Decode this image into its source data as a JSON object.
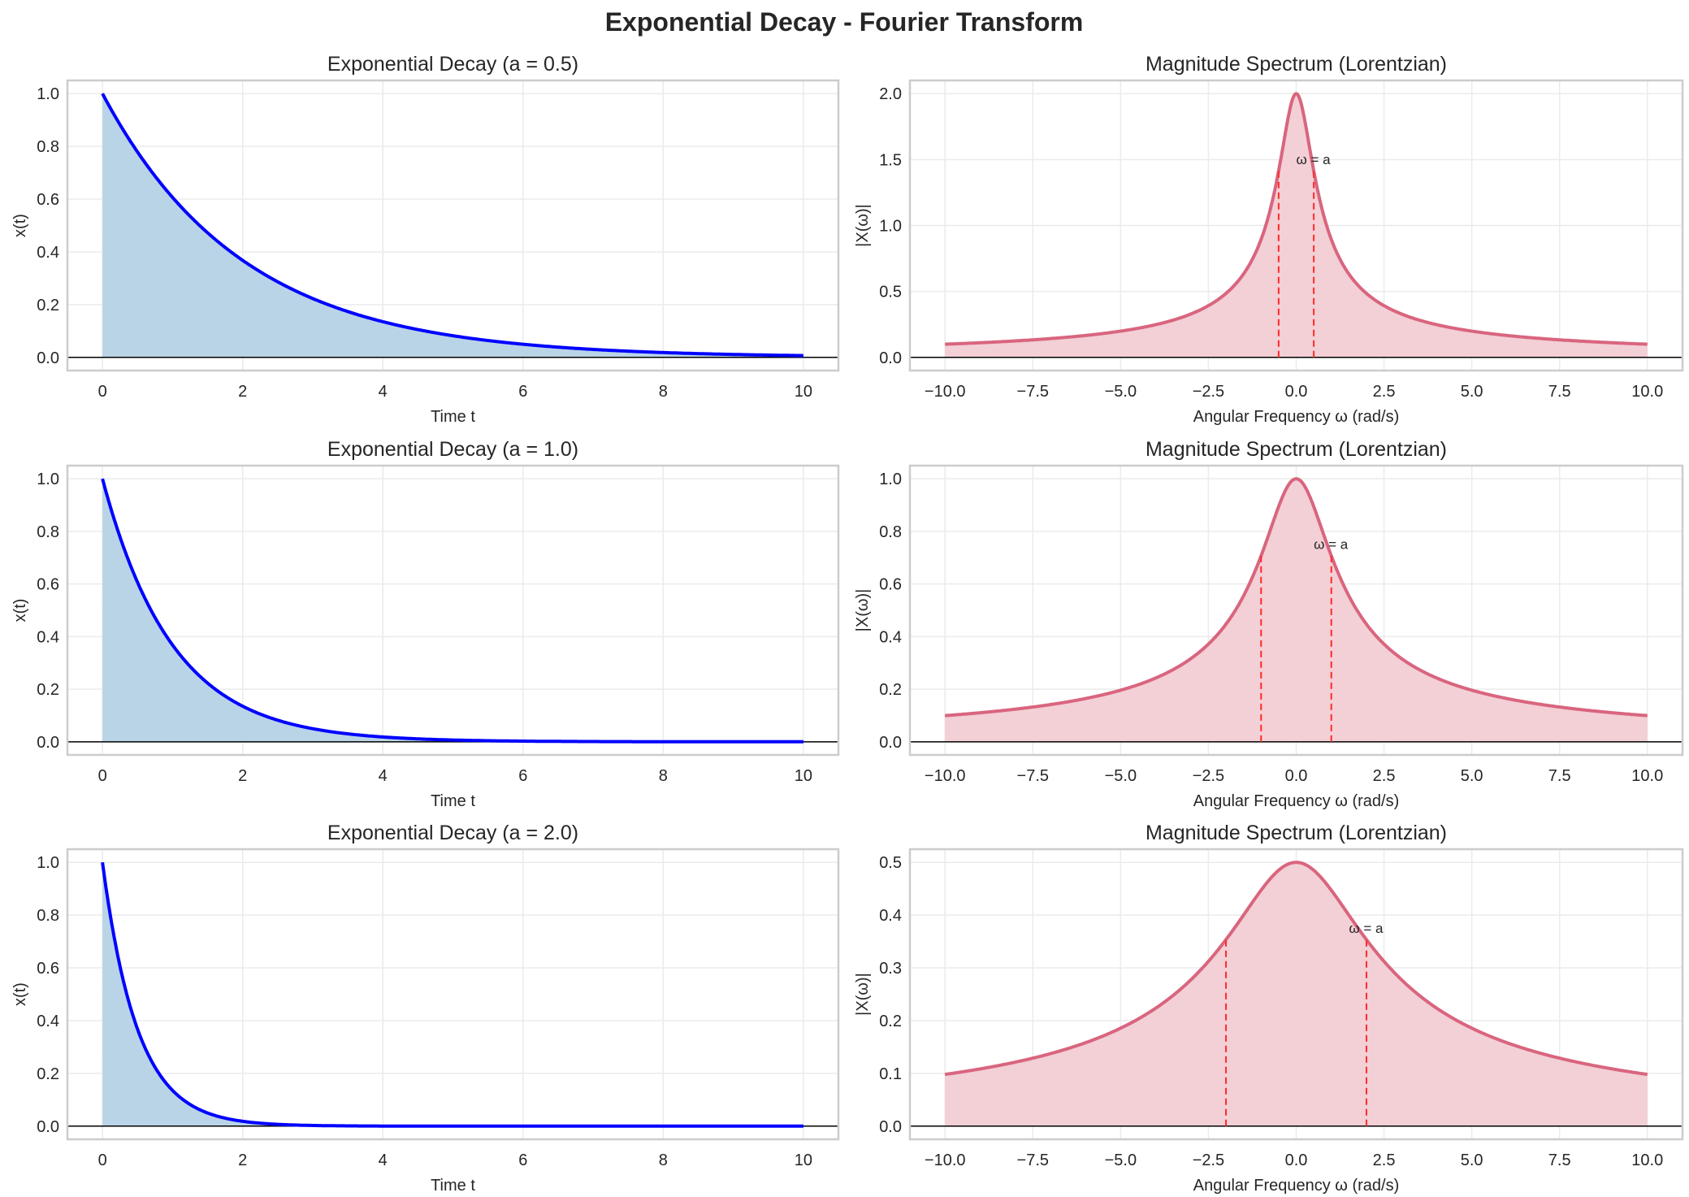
{
  "suptitle": "Exponential Decay - Fourier Transform",
  "colors": {
    "time_line": "#0000ff",
    "time_fill": "#b9d4e7",
    "spec_line": "#d9657e",
    "spec_fill": "#f3cfd6",
    "marker_line": "#ff2a2a",
    "grid": "#ebebeb",
    "frame": "#cccccc"
  },
  "chart_data": [
    {
      "type": "area",
      "title": "Exponential Decay (a = 0.5)",
      "xlabel": "Time t",
      "ylabel": "x(t)",
      "a": 0.5,
      "xlim": [
        -0.5,
        10.5
      ],
      "ylim": [
        -0.05,
        1.05
      ],
      "xticks": [
        0,
        2,
        4,
        6,
        8,
        10
      ],
      "xtick_labels": [
        "0",
        "2",
        "4",
        "6",
        "8",
        "10"
      ],
      "yticks": [
        0,
        0.2,
        0.4,
        0.6,
        0.8,
        1.0
      ],
      "ytick_labels": [
        "0.0",
        "0.2",
        "0.4",
        "0.6",
        "0.8",
        "1.0"
      ],
      "grid": true,
      "x": [
        0,
        1,
        2,
        3,
        4,
        5,
        6,
        7,
        8,
        9,
        10
      ],
      "y": [
        1,
        0.607,
        0.368,
        0.223,
        0.135,
        0.082,
        0.05,
        0.03,
        0.018,
        0.011,
        0.007
      ]
    },
    {
      "type": "area",
      "title": "Magnitude Spectrum (Lorentzian)",
      "xlabel": "Angular Frequency ω (rad/s)",
      "ylabel": "|X(ω)|",
      "a": 0.5,
      "xlim": [
        -11,
        11
      ],
      "ylim": [
        -0.1,
        2.1
      ],
      "xticks": [
        -10,
        -7.5,
        -5,
        -2.5,
        0,
        2.5,
        5,
        7.5,
        10
      ],
      "xtick_labels": [
        "−10.0",
        "−7.5",
        "−5.0",
        "−2.5",
        "0.0",
        "2.5",
        "5.0",
        "7.5",
        "10.0"
      ],
      "yticks": [
        0,
        0.5,
        1.0,
        1.5,
        2.0
      ],
      "ytick_labels": [
        "0.0",
        "0.5",
        "1.0",
        "1.5",
        "2.0"
      ],
      "grid": true,
      "x": [
        -10,
        -7.5,
        -5,
        -2.5,
        0,
        2.5,
        5,
        7.5,
        10
      ],
      "y": [
        0.0999,
        0.133,
        0.199,
        0.392,
        2.0,
        0.392,
        0.199,
        0.133,
        0.0999
      ],
      "annotation": "ω = a",
      "markers": [
        -0.5,
        0.5
      ]
    },
    {
      "type": "area",
      "title": "Exponential Decay (a = 1.0)",
      "xlabel": "Time t",
      "ylabel": "x(t)",
      "a": 1.0,
      "xlim": [
        -0.5,
        10.5
      ],
      "ylim": [
        -0.05,
        1.05
      ],
      "xticks": [
        0,
        2,
        4,
        6,
        8,
        10
      ],
      "xtick_labels": [
        "0",
        "2",
        "4",
        "6",
        "8",
        "10"
      ],
      "yticks": [
        0,
        0.2,
        0.4,
        0.6,
        0.8,
        1.0
      ],
      "ytick_labels": [
        "0.0",
        "0.2",
        "0.4",
        "0.6",
        "0.8",
        "1.0"
      ],
      "grid": true,
      "x": [
        0,
        1,
        2,
        3,
        4,
        5,
        6,
        7,
        8,
        9,
        10
      ],
      "y": [
        1,
        0.368,
        0.135,
        0.05,
        0.018,
        0.007,
        0.002,
        0.001,
        0,
        0,
        0
      ]
    },
    {
      "type": "area",
      "title": "Magnitude Spectrum (Lorentzian)",
      "xlabel": "Angular Frequency ω (rad/s)",
      "ylabel": "|X(ω)|",
      "a": 1.0,
      "xlim": [
        -11,
        11
      ],
      "ylim": [
        -0.05,
        1.05
      ],
      "xticks": [
        -10,
        -7.5,
        -5,
        -2.5,
        0,
        2.5,
        5,
        7.5,
        10
      ],
      "xtick_labels": [
        "−10.0",
        "−7.5",
        "−5.0",
        "−2.5",
        "0.0",
        "2.5",
        "5.0",
        "7.5",
        "10.0"
      ],
      "yticks": [
        0,
        0.2,
        0.4,
        0.6,
        0.8,
        1.0
      ],
      "ytick_labels": [
        "0.0",
        "0.2",
        "0.4",
        "0.6",
        "0.8",
        "1.0"
      ],
      "grid": true,
      "x": [
        -10,
        -7.5,
        -5,
        -2.5,
        0,
        2.5,
        5,
        7.5,
        10
      ],
      "y": [
        0.0995,
        0.132,
        0.196,
        0.371,
        1.0,
        0.371,
        0.196,
        0.132,
        0.0995
      ],
      "annotation": "ω = a",
      "markers": [
        -1,
        1
      ]
    },
    {
      "type": "area",
      "title": "Exponential Decay (a = 2.0)",
      "xlabel": "Time t",
      "ylabel": "x(t)",
      "a": 2.0,
      "xlim": [
        -0.5,
        10.5
      ],
      "ylim": [
        -0.05,
        1.05
      ],
      "xticks": [
        0,
        2,
        4,
        6,
        8,
        10
      ],
      "xtick_labels": [
        "0",
        "2",
        "4",
        "6",
        "8",
        "10"
      ],
      "yticks": [
        0,
        0.2,
        0.4,
        0.6,
        0.8,
        1.0
      ],
      "ytick_labels": [
        "0.0",
        "0.2",
        "0.4",
        "0.6",
        "0.8",
        "1.0"
      ],
      "grid": true,
      "x": [
        0,
        1,
        2,
        3,
        4,
        5,
        6,
        7,
        8,
        9,
        10
      ],
      "y": [
        1,
        0.135,
        0.018,
        0.002,
        0,
        0,
        0,
        0,
        0,
        0,
        0
      ]
    },
    {
      "type": "area",
      "title": "Magnitude Spectrum (Lorentzian)",
      "xlabel": "Angular Frequency ω (rad/s)",
      "ylabel": "|X(ω)|",
      "a": 2.0,
      "xlim": [
        -11,
        11
      ],
      "ylim": [
        -0.025,
        0.525
      ],
      "xticks": [
        -10,
        -7.5,
        -5,
        -2.5,
        0,
        2.5,
        5,
        7.5,
        10
      ],
      "xtick_labels": [
        "−10.0",
        "−7.5",
        "−5.0",
        "−2.5",
        "0.0",
        "2.5",
        "5.0",
        "7.5",
        "10.0"
      ],
      "yticks": [
        0,
        0.1,
        0.2,
        0.3,
        0.4,
        0.5
      ],
      "ytick_labels": [
        "0.0",
        "0.1",
        "0.2",
        "0.3",
        "0.4",
        "0.5"
      ],
      "grid": true,
      "x": [
        -10,
        -7.5,
        -5,
        -2.5,
        0,
        2.5,
        5,
        7.5,
        10
      ],
      "y": [
        0.098,
        0.129,
        0.186,
        0.312,
        0.5,
        0.312,
        0.186,
        0.129,
        0.098
      ],
      "annotation": "ω = a",
      "markers": [
        -2,
        2
      ]
    }
  ]
}
